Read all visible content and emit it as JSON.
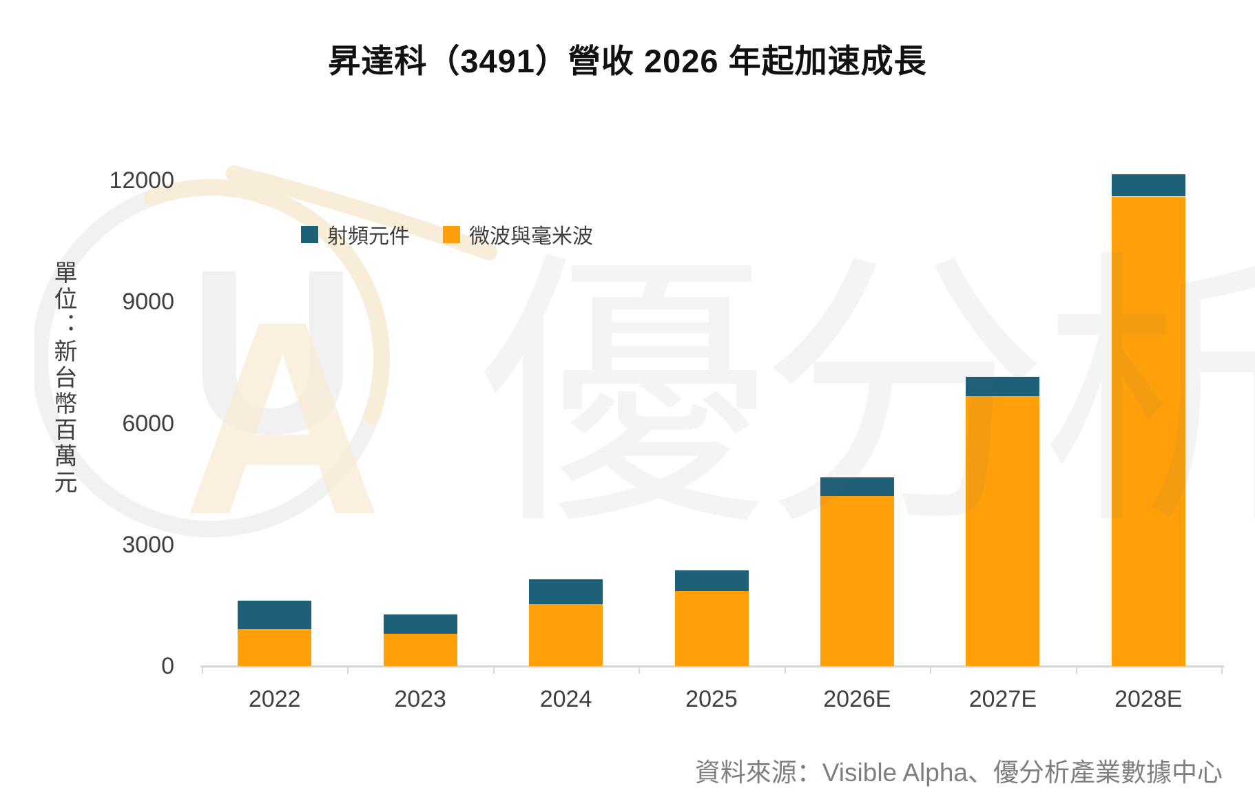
{
  "chart_data": {
    "type": "bar",
    "stacked": true,
    "title": "昇達科（3491）營收 2026 年起加速成長",
    "unit_label": "單位：新台幣百萬元",
    "categories": [
      "2022",
      "2023",
      "2024",
      "2025",
      "2026E",
      "2027E",
      "2028E"
    ],
    "series": [
      {
        "name": "射頻元件",
        "color": "#1D6078",
        "values": [
          700,
          480,
          600,
          520,
          470,
          480,
          560
        ]
      },
      {
        "name": "微波與毫米波",
        "color": "#FFA00A",
        "values": [
          920,
          800,
          1540,
          1850,
          4200,
          6670,
          11600
        ]
      }
    ],
    "stack_order_bottom_to_top": [
      "微波與毫米波",
      "射頻元件"
    ],
    "ylabel": "",
    "xlabel": "",
    "ylim": [
      0,
      12000
    ],
    "yticks": [
      0,
      3000,
      6000,
      9000,
      12000
    ],
    "grid": false,
    "legend_position": "inside-top-left",
    "source": "資料來源：Visible Alpha、優分析產業數據中心",
    "watermark": "優分析",
    "logo_letters": "UA"
  },
  "colors": {
    "rf_blue": "#1D6078",
    "microwave_orange": "#FFA00A",
    "axis_gray": "#d6d6d6",
    "label_gray": "#3f3f3f",
    "source_gray": "#7f7f7f",
    "logo_gray": "#f1f1f1",
    "logo_cream": "#f8edd8"
  }
}
